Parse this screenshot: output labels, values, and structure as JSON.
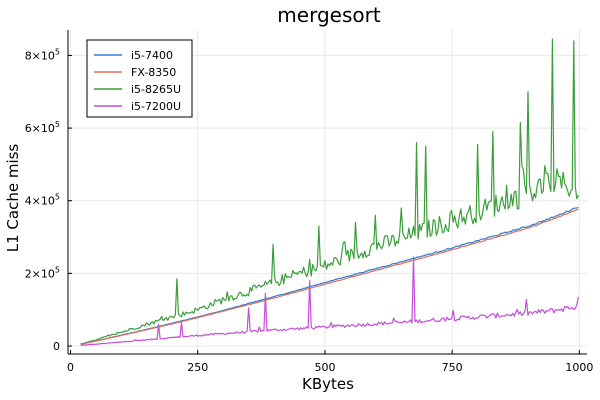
{
  "chart_data": {
    "type": "line",
    "title": "mergesort",
    "xlabel": "KBytes",
    "ylabel": "L1 Cache miss",
    "xlim": [
      0,
      1000
    ],
    "ylim": [
      0,
      870000
    ],
    "x_ticks": [
      {
        "value": 0,
        "label": "0"
      },
      {
        "value": 250,
        "label": "250"
      },
      {
        "value": 500,
        "label": "500"
      },
      {
        "value": 750,
        "label": "750"
      },
      {
        "value": 1000,
        "label": "1000"
      }
    ],
    "y_ticks": [
      {
        "value": 0,
        "label": "0"
      },
      {
        "value": 200000,
        "label": "2×10",
        "exp": "5"
      },
      {
        "value": 400000,
        "label": "4×10",
        "exp": "5"
      },
      {
        "value": 600000,
        "label": "6×10",
        "exp": "5"
      },
      {
        "value": 800000,
        "label": "8×10",
        "exp": "5"
      }
    ],
    "grid": true,
    "legend_position": "top-left",
    "x": [
      20,
      50,
      100,
      150,
      200,
      250,
      300,
      350,
      400,
      450,
      500,
      550,
      600,
      650,
      700,
      750,
      800,
      850,
      900,
      950,
      1000
    ],
    "series": [
      {
        "name": "i5-7400",
        "color": "#2a7fd5",
        "values": [
          5000,
          14000,
          30000,
          46000,
          63000,
          80000,
          98000,
          117000,
          136000,
          155000,
          175000,
          194000,
          213000,
          232000,
          251000,
          270000,
          290000,
          310000,
          330000,
          355000,
          385000
        ]
      },
      {
        "name": "FX-8350",
        "color": "#e26d5a",
        "values": [
          4500,
          13500,
          29000,
          45000,
          61000,
          78000,
          96000,
          114000,
          132000,
          151000,
          170000,
          189000,
          208000,
          227000,
          246000,
          265000,
          285000,
          305000,
          325000,
          350000,
          378000
        ]
      },
      {
        "name": "i5-8265U",
        "color": "#3b9e3b",
        "values": [
          6000,
          17000,
          38000,
          60000,
          80000,
          100000,
          128000,
          150000,
          175000,
          200000,
          220000,
          250000,
          275000,
          295000,
          320000,
          345000,
          370000,
          395000,
          420000,
          455000,
          430000
        ],
        "peaks": [
          {
            "x": 210,
            "y": 185000
          },
          {
            "x": 400,
            "y": 280000
          },
          {
            "x": 490,
            "y": 330000
          },
          {
            "x": 560,
            "y": 340000
          },
          {
            "x": 600,
            "y": 360000
          },
          {
            "x": 650,
            "y": 380000
          },
          {
            "x": 680,
            "y": 560000
          },
          {
            "x": 700,
            "y": 550000
          },
          {
            "x": 800,
            "y": 555000
          },
          {
            "x": 830,
            "y": 590000
          },
          {
            "x": 885,
            "y": 615000
          },
          {
            "x": 900,
            "y": 700000
          },
          {
            "x": 948,
            "y": 845000
          },
          {
            "x": 990,
            "y": 840000
          }
        ]
      },
      {
        "name": "i5-7200U",
        "color": "#c24fd6",
        "values": [
          2000,
          5000,
          11000,
          17000,
          23000,
          29000,
          34000,
          39000,
          44000,
          48000,
          52000,
          57000,
          61000,
          65000,
          70000,
          75000,
          80000,
          85000,
          90000,
          98000,
          110000
        ],
        "peaks": [
          {
            "x": 175,
            "y": 60000
          },
          {
            "x": 220,
            "y": 65000
          },
          {
            "x": 350,
            "y": 105000
          },
          {
            "x": 385,
            "y": 145000
          },
          {
            "x": 470,
            "y": 180000
          },
          {
            "x": 675,
            "y": 245000
          },
          {
            "x": 998,
            "y": 135000
          }
        ]
      }
    ]
  }
}
